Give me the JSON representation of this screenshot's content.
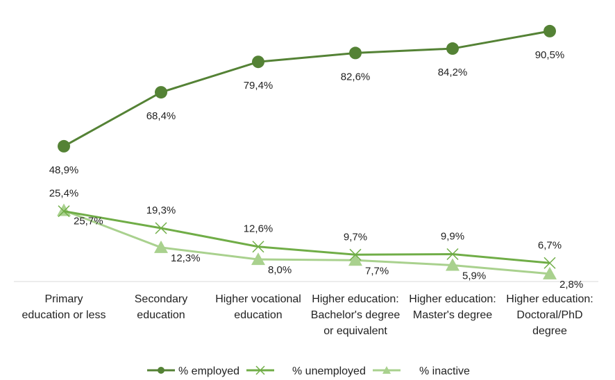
{
  "chart_data": {
    "type": "line",
    "title": "",
    "xlabel": "",
    "ylabel": "",
    "ylim": [
      0,
      100
    ],
    "grid": false,
    "legend_position": "bottom",
    "categories": [
      [
        "Primary",
        "education or less"
      ],
      [
        "Secondary",
        "education"
      ],
      [
        "Higher vocational",
        "education"
      ],
      [
        "Higher education:",
        "Bachelor's degree",
        "or equivalent"
      ],
      [
        "Higher education:",
        "Master's degree"
      ],
      [
        "Higher education:",
        "Doctoral/PhD",
        "degree"
      ]
    ],
    "series": [
      {
        "name": "% employed",
        "marker": "circle",
        "color": "#548235",
        "values": [
          48.9,
          68.4,
          79.4,
          82.6,
          84.2,
          90.5
        ],
        "labels": [
          "48,9%",
          "68,4%",
          "79,4%",
          "82,6%",
          "84,2%",
          "90,5%"
        ]
      },
      {
        "name": "% unemployed",
        "marker": "x",
        "color": "#70AD47",
        "values": [
          25.4,
          19.3,
          12.6,
          9.7,
          9.9,
          6.7
        ],
        "labels": [
          "25,4%",
          "19,3%",
          "12,6%",
          "9,7%",
          "9,9%",
          "6,7%"
        ]
      },
      {
        "name": "% inactive",
        "marker": "triangle",
        "color": "#A9D18E",
        "values": [
          25.7,
          12.3,
          8.0,
          7.7,
          5.9,
          2.8
        ],
        "labels": [
          "25,7%",
          "12,3%",
          "8,0%",
          "7,7%",
          "5,9%",
          "2,8%"
        ]
      }
    ]
  }
}
